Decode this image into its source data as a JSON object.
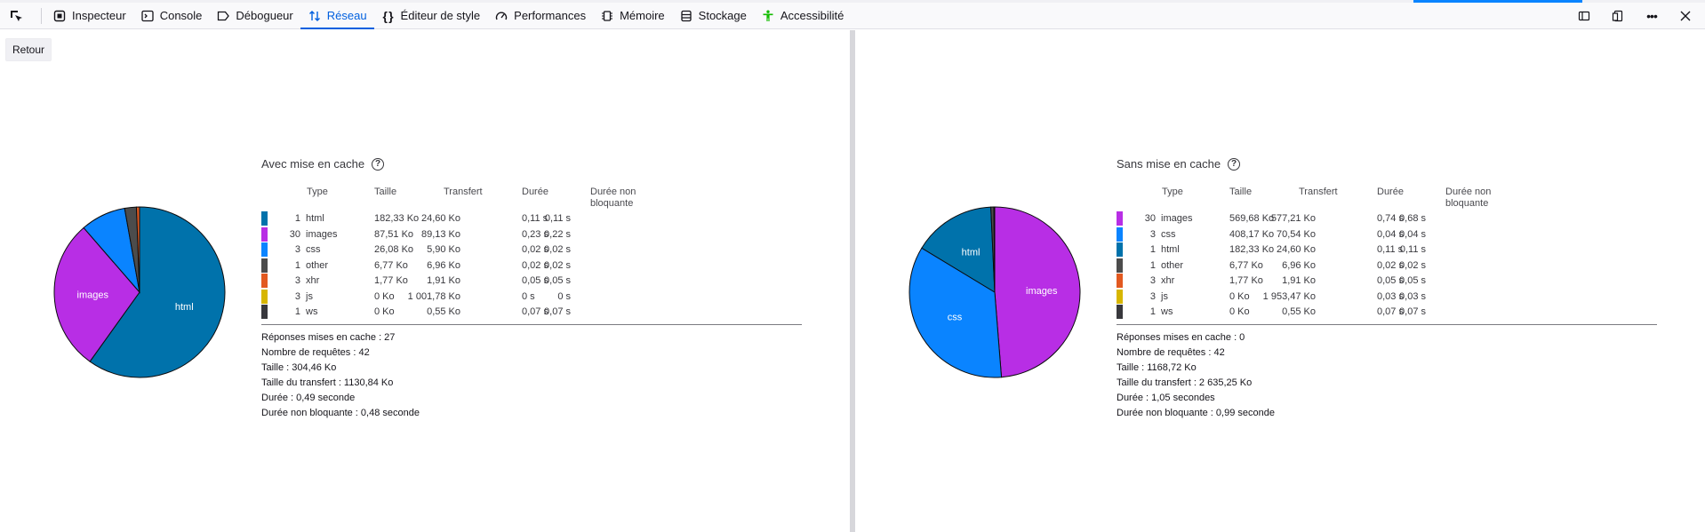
{
  "colors": {
    "html": "#0072ab",
    "images": "#b82ee5",
    "css": "#0a84ff",
    "other": "#4c4c4c",
    "xhr": "#e25920",
    "js": "#d7b600",
    "ws": "#4d4d52",
    "accent": "#0060df"
  },
  "toolbar": {
    "picker_icon": "element-picker-icon",
    "tools": [
      {
        "label": "Inspecteur",
        "icon": "inspector-icon"
      },
      {
        "label": "Console",
        "icon": "console-icon"
      },
      {
        "label": "Débogueur",
        "icon": "debugger-icon"
      },
      {
        "label": "Réseau",
        "icon": "network-icon",
        "selected": true
      },
      {
        "label": "Éditeur de style",
        "icon": "style-editor-icon"
      },
      {
        "label": "Performances",
        "icon": "performance-icon"
      },
      {
        "label": "Mémoire",
        "icon": "memory-icon"
      },
      {
        "label": "Stockage",
        "icon": "storage-icon"
      },
      {
        "label": "Accessibilité",
        "icon": "accessibility-icon"
      }
    ]
  },
  "back_label": "Retour",
  "headers": {
    "type": "Type",
    "size": "Taille",
    "transfer": "Transfert",
    "duration": "Durée",
    "nonblocking_1": "Durée non",
    "nonblocking_2": "bloquante"
  },
  "cached": {
    "title": "Avec mise en cache",
    "rows": [
      {
        "count": "1",
        "type": "html",
        "size": "182,33 Ko",
        "transfer": "24,60 Ko",
        "duration": "0,11 s",
        "nonblocking": "0,11 s",
        "color": "#0072ab"
      },
      {
        "count": "30",
        "type": "images",
        "size": "87,51 Ko",
        "transfer": "89,13 Ko",
        "duration": "0,23 s",
        "nonblocking": "0,22 s",
        "color": "#b82ee5"
      },
      {
        "count": "3",
        "type": "css",
        "size": "26,08 Ko",
        "transfer": "5,90 Ko",
        "duration": "0,02 s",
        "nonblocking": "0,02 s",
        "color": "#0a84ff"
      },
      {
        "count": "1",
        "type": "other",
        "size": "6,77 Ko",
        "transfer": "6,96 Ko",
        "duration": "0,02 s",
        "nonblocking": "0,02 s",
        "color": "#4c4c4c"
      },
      {
        "count": "3",
        "type": "xhr",
        "size": "1,77 Ko",
        "transfer": "1,91 Ko",
        "duration": "0,05 s",
        "nonblocking": "0,05 s",
        "color": "#e25920"
      },
      {
        "count": "3",
        "type": "js",
        "size": "0 Ko",
        "transfer": "1 001,78 Ko",
        "duration": "0 s",
        "nonblocking": "0 s",
        "color": "#d7b600"
      },
      {
        "count": "1",
        "type": "ws",
        "size": "0 Ko",
        "transfer": "0,55 Ko",
        "duration": "0,07 s",
        "nonblocking": "0,07 s",
        "color": "#38383d"
      }
    ],
    "summary": [
      "Réponses mises en cache : 27",
      "Nombre de requêtes : 42",
      "Taille : 304,46 Ko",
      "Taille du transfert : 1130,84 Ko",
      "Durée : 0,49 seconde",
      "Durée non bloquante : 0,48 seconde"
    ]
  },
  "uncached": {
    "title": "Sans mise en cache",
    "rows": [
      {
        "count": "30",
        "type": "images",
        "size": "569,68 Ko",
        "transfer": "577,21 Ko",
        "duration": "0,74 s",
        "nonblocking": "0,68 s",
        "color": "#b82ee5"
      },
      {
        "count": "3",
        "type": "css",
        "size": "408,17 Ko",
        "transfer": "70,54 Ko",
        "duration": "0,04 s",
        "nonblocking": "0,04 s",
        "color": "#0a84ff"
      },
      {
        "count": "1",
        "type": "html",
        "size": "182,33 Ko",
        "transfer": "24,60 Ko",
        "duration": "0,11 s",
        "nonblocking": "0,11 s",
        "color": "#0072ab"
      },
      {
        "count": "1",
        "type": "other",
        "size": "6,77 Ko",
        "transfer": "6,96 Ko",
        "duration": "0,02 s",
        "nonblocking": "0,02 s",
        "color": "#4c4c4c"
      },
      {
        "count": "3",
        "type": "xhr",
        "size": "1,77 Ko",
        "transfer": "1,91 Ko",
        "duration": "0,05 s",
        "nonblocking": "0,05 s",
        "color": "#e25920"
      },
      {
        "count": "3",
        "type": "js",
        "size": "0 Ko",
        "transfer": "1 953,47 Ko",
        "duration": "0,03 s",
        "nonblocking": "0,03 s",
        "color": "#d7b600"
      },
      {
        "count": "1",
        "type": "ws",
        "size": "0 Ko",
        "transfer": "0,55 Ko",
        "duration": "0,07 s",
        "nonblocking": "0,07 s",
        "color": "#38383d"
      }
    ],
    "summary": [
      "Réponses mises en cache : 0",
      "Nombre de requêtes : 42",
      "Taille : 1168,72 Ko",
      "Taille du transfert : 2 635,25 Ko",
      "Durée : 1,05 secondes",
      "Durée non bloquante : 0,99 seconde"
    ]
  },
  "chart_data": [
    {
      "type": "pie",
      "title": "Avec mise en cache",
      "categories": [
        "html",
        "images",
        "css",
        "other",
        "xhr",
        "js",
        "ws"
      ],
      "values": [
        1,
        30,
        3,
        1,
        3,
        3,
        1
      ],
      "slice_values": [
        182.33,
        87.51,
        26.08,
        6.77,
        1.77,
        0,
        0
      ],
      "slice_labels": [
        "html",
        "images",
        "",
        "",
        "",
        "",
        ""
      ],
      "colors": [
        "#0072ab",
        "#b82ee5",
        "#0a84ff",
        "#4c4c4c",
        "#e25920",
        "#d7b600",
        "#38383d"
      ]
    },
    {
      "type": "pie",
      "title": "Sans mise en cache",
      "categories": [
        "images",
        "css",
        "html",
        "other",
        "xhr",
        "js",
        "ws"
      ],
      "values": [
        30,
        3,
        1,
        1,
        3,
        3,
        1
      ],
      "slice_values": [
        569.68,
        408.17,
        182.33,
        6.77,
        1.77,
        0,
        0
      ],
      "slice_labels": [
        "images",
        "css",
        "html",
        "",
        "",
        "",
        ""
      ],
      "colors": [
        "#b82ee5",
        "#0a84ff",
        "#0072ab",
        "#4c4c4c",
        "#e25920",
        "#d7b600",
        "#38383d"
      ]
    }
  ]
}
